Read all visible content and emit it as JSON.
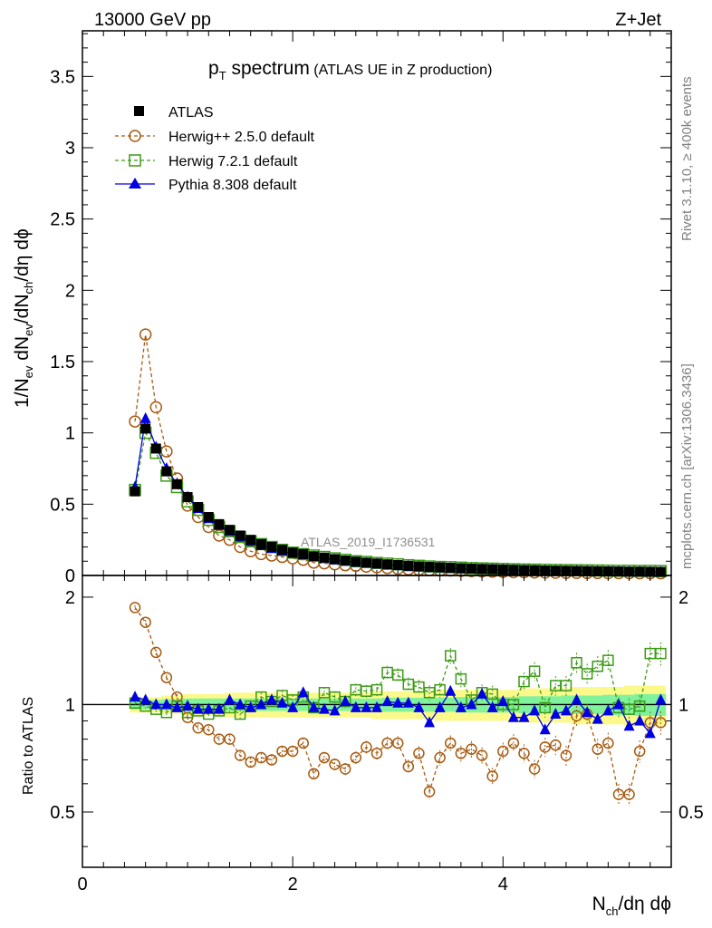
{
  "header": {
    "left": "13000 GeV pp",
    "right": "Z+Jet"
  },
  "side_labels": {
    "top": "Rivet 3.1.10, ≥ 400k events",
    "bottom": "mcplots.cern.ch [arXiv:1306.3436]"
  },
  "colors": {
    "data": "#000000",
    "herwig25": "#a65a10",
    "herwig72": "#3c9a16",
    "pythia": "#0000e0",
    "band_inner": "#7ff29b",
    "band_outer": "#fbf98a"
  },
  "chart_data": [
    {
      "type": "scatter",
      "title_main": "p",
      "title_sub": "T",
      "title_rest": " spectrum",
      "title_extra": " (ATLAS UE in Z production)",
      "watermark": "ATLAS_2019_I1736531",
      "xlabel": "N",
      "xlabel_sub": "ch",
      "xlabel_rest": "/dη dϕ",
      "ylabel": "1/N_ev dN_ev/dN_ch/dη dϕ",
      "xlim": [
        0,
        5.6
      ],
      "ylim": [
        0,
        3.82
      ],
      "y_ticks": [
        "0",
        "0.5",
        "1",
        "1.5",
        "2",
        "2.5",
        "3",
        "3.5"
      ],
      "legend": [
        {
          "key": "atlas",
          "label": "ATLAS"
        },
        {
          "key": "herwig25",
          "label": "Herwig++ 2.5.0 default"
        },
        {
          "key": "herwig72",
          "label": "Herwig 7.2.1 default"
        },
        {
          "key": "pythia",
          "label": "Pythia 8.308 default"
        }
      ],
      "x": [
        0.5,
        0.6,
        0.7,
        0.8,
        0.9,
        1.0,
        1.1,
        1.2,
        1.3,
        1.4,
        1.5,
        1.6,
        1.7,
        1.8,
        1.9,
        2.0,
        2.1,
        2.2,
        2.3,
        2.4,
        2.5,
        2.6,
        2.7,
        2.8,
        2.9,
        3.0,
        3.1,
        3.2,
        3.3,
        3.4,
        3.5,
        3.6,
        3.7,
        3.8,
        3.9,
        4.0,
        4.1,
        4.2,
        4.3,
        4.4,
        4.5,
        4.6,
        4.7,
        4.8,
        4.9,
        5.0,
        5.1,
        5.2,
        5.3,
        5.4,
        5.5
      ],
      "series": [
        {
          "name": "ATLAS",
          "values": [
            0.59,
            1.03,
            0.89,
            0.73,
            0.64,
            0.55,
            0.48,
            0.41,
            0.36,
            0.32,
            0.28,
            0.25,
            0.22,
            0.2,
            0.18,
            0.16,
            0.15,
            0.135,
            0.125,
            0.115,
            0.105,
            0.097,
            0.09,
            0.084,
            0.078,
            0.073,
            0.068,
            0.064,
            0.06,
            0.057,
            0.054,
            0.051,
            0.048,
            0.046,
            0.044,
            0.042,
            0.04,
            0.038,
            0.037,
            0.035,
            0.034,
            0.033,
            0.032,
            0.031,
            0.03,
            0.029,
            0.028,
            0.027,
            0.027,
            0.026,
            0.025
          ]
        },
        {
          "name": "Herwig++ 2.5.0 default",
          "values": [
            1.08,
            1.69,
            1.18,
            0.87,
            0.68,
            0.49,
            0.41,
            0.34,
            0.28,
            0.25,
            0.2,
            0.17,
            0.15,
            0.14,
            0.13,
            0.12,
            0.11,
            0.09,
            0.085,
            0.078,
            0.072,
            0.068,
            0.062,
            0.057,
            0.052,
            0.047,
            0.043,
            0.04,
            0.037,
            0.035,
            0.034,
            0.032,
            0.03,
            0.028,
            0.026,
            0.025,
            0.023,
            0.022,
            0.021,
            0.02,
            0.019,
            0.018,
            0.018,
            0.017,
            0.017,
            0.016,
            0.016,
            0.016,
            0.015,
            0.015,
            0.015
          ]
        },
        {
          "name": "Herwig 7.2.1 default",
          "values": [
            0.6,
            1.0,
            0.86,
            0.7,
            0.62,
            0.52,
            0.46,
            0.39,
            0.34,
            0.31,
            0.27,
            0.24,
            0.22,
            0.2,
            0.18,
            0.16,
            0.15,
            0.14,
            0.13,
            0.12,
            0.11,
            0.1,
            0.095,
            0.088,
            0.083,
            0.078,
            0.072,
            0.068,
            0.063,
            0.06,
            0.058,
            0.055,
            0.052,
            0.05,
            0.048,
            0.046,
            0.044,
            0.042,
            0.041,
            0.04,
            0.039,
            0.038,
            0.037,
            0.036,
            0.035,
            0.034,
            0.033,
            0.033,
            0.032,
            0.032,
            0.031
          ]
        },
        {
          "name": "Pythia 8.308 default",
          "values": [
            0.62,
            1.1,
            0.9,
            0.75,
            0.64,
            0.55,
            0.47,
            0.4,
            0.35,
            0.31,
            0.27,
            0.24,
            0.21,
            0.19,
            0.17,
            0.155,
            0.145,
            0.13,
            0.12,
            0.11,
            0.1,
            0.092,
            0.086,
            0.08,
            0.074,
            0.069,
            0.064,
            0.06,
            0.056,
            0.053,
            0.05,
            0.047,
            0.045,
            0.043,
            0.041,
            0.039,
            0.037,
            0.036,
            0.034,
            0.033,
            0.032,
            0.031,
            0.03,
            0.029,
            0.028,
            0.027,
            0.026,
            0.025,
            0.025,
            0.024,
            0.023
          ]
        }
      ]
    },
    {
      "type": "scatter",
      "ylabel": "Ratio to ATLAS",
      "xlim": [
        0,
        5.6
      ],
      "ylim": [
        0.35,
        2.3
      ],
      "x_ticks": [
        "0",
        "2",
        "4"
      ],
      "y_ticks_left": [
        "0.5",
        "1",
        "2"
      ],
      "y_ticks_right": [
        "0.5",
        "1",
        "2"
      ],
      "reference_line": 1,
      "band_inner_halfwidth": [
        0.03,
        0.03,
        0.03,
        0.035,
        0.035,
        0.04,
        0.04,
        0.04,
        0.04,
        0.04,
        0.04,
        0.04,
        0.04,
        0.04,
        0.04,
        0.04,
        0.04,
        0.04,
        0.04,
        0.04,
        0.04,
        0.04,
        0.04,
        0.04,
        0.045,
        0.045,
        0.045,
        0.045,
        0.045,
        0.045,
        0.045,
        0.05,
        0.05,
        0.05,
        0.05,
        0.05,
        0.05,
        0.055,
        0.055,
        0.055,
        0.055,
        0.06,
        0.06,
        0.06,
        0.06,
        0.065,
        0.065,
        0.065,
        0.07,
        0.07,
        0.07
      ],
      "band_outer_halfwidth": [
        0.05,
        0.05,
        0.05,
        0.06,
        0.06,
        0.07,
        0.07,
        0.07,
        0.07,
        0.08,
        0.08,
        0.08,
        0.08,
        0.08,
        0.08,
        0.08,
        0.08,
        0.08,
        0.08,
        0.08,
        0.08,
        0.08,
        0.08,
        0.09,
        0.09,
        0.09,
        0.09,
        0.09,
        0.09,
        0.1,
        0.1,
        0.1,
        0.1,
        0.1,
        0.1,
        0.1,
        0.1,
        0.11,
        0.11,
        0.11,
        0.11,
        0.11,
        0.12,
        0.12,
        0.12,
        0.12,
        0.12,
        0.13,
        0.13,
        0.13,
        0.13
      ],
      "series": [
        {
          "name": "Herwig++ 2.5.0 default",
          "values": [
            1.87,
            1.7,
            1.4,
            1.19,
            1.05,
            0.92,
            0.86,
            0.85,
            0.8,
            0.8,
            0.72,
            0.69,
            0.71,
            0.7,
            0.74,
            0.74,
            0.78,
            0.64,
            0.71,
            0.68,
            0.66,
            0.71,
            0.76,
            0.73,
            0.78,
            0.78,
            0.67,
            0.73,
            0.57,
            0.71,
            0.78,
            0.73,
            0.75,
            0.72,
            0.63,
            0.74,
            0.78,
            0.73,
            0.66,
            0.76,
            0.77,
            0.72,
            0.93,
            0.94,
            0.75,
            0.78,
            0.56,
            0.56,
            0.74,
            0.89,
            0.89
          ]
        },
        {
          "name": "Herwig 7.2.1 default",
          "values": [
            1.01,
            0.99,
            0.97,
            0.95,
            0.99,
            0.95,
            0.96,
            0.94,
            0.96,
            0.98,
            0.94,
            0.99,
            1.05,
            1.02,
            1.06,
            1.03,
            1.05,
            0.98,
            1.08,
            1.05,
            1.02,
            1.1,
            1.09,
            1.1,
            1.23,
            1.21,
            1.14,
            1.12,
            1.08,
            1.1,
            1.37,
            1.18,
            1.03,
            1.08,
            1.07,
            1.0,
            1.0,
            1.16,
            1.24,
            0.98,
            1.13,
            1.13,
            1.31,
            1.22,
            1.28,
            1.33,
            0.98,
            0.97,
            0.99,
            1.39,
            1.39
          ]
        },
        {
          "name": "Pythia 8.308 default",
          "values": [
            1.05,
            1.03,
            1.0,
            1.0,
            0.98,
            0.99,
            0.97,
            0.97,
            0.97,
            1.03,
            1.0,
            0.98,
            1.0,
            1.03,
            1.01,
            0.98,
            1.08,
            0.98,
            0.97,
            0.96,
            1.02,
            0.98,
            0.98,
            0.98,
            1.02,
            1.01,
            1.01,
            0.98,
            0.89,
            0.98,
            1.09,
            0.98,
            1.0,
            1.07,
            0.98,
            1.02,
            0.92,
            0.92,
            0.96,
            0.85,
            0.94,
            0.96,
            1.03,
            0.95,
            0.91,
            0.96,
            1.0,
            0.87,
            0.9,
            0.83,
            1.03
          ]
        }
      ]
    }
  ]
}
